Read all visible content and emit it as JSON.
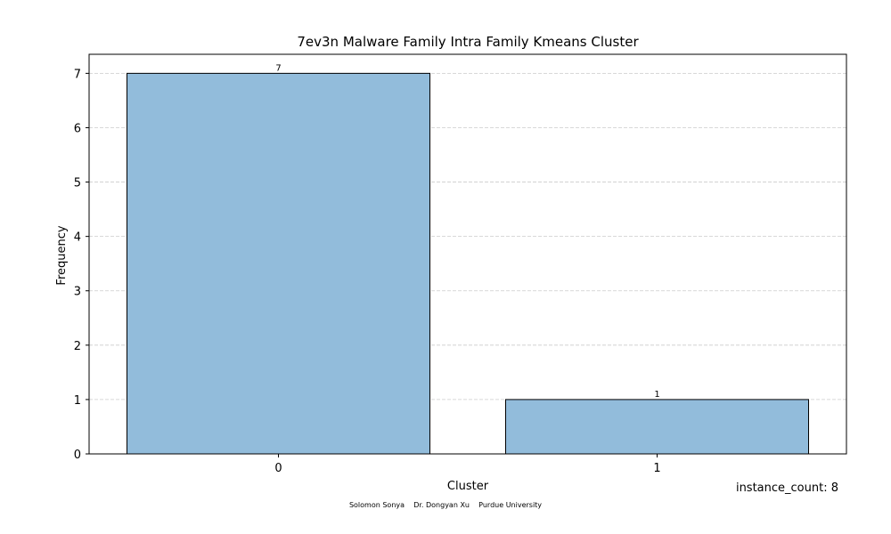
{
  "chart_data": {
    "type": "bar",
    "title": "7ev3n Malware Family Intra Family Kmeans Cluster",
    "xlabel": "Cluster",
    "ylabel": "Frequency",
    "categories": [
      "0",
      "1"
    ],
    "values": [
      7,
      1
    ],
    "data_labels": [
      "7",
      "1"
    ],
    "ylim": [
      0,
      7.35
    ],
    "yticks": [
      0,
      1,
      2,
      3,
      4,
      5,
      6,
      7
    ],
    "grid": true,
    "bar_color": "#92bcdb",
    "bar_edge_color": "#000000",
    "grid_color": "#cccccc"
  },
  "annotations": {
    "instance_count": "instance_count: 8",
    "footer": "Solomon Sonya    Dr. Dongyan Xu    Purdue University"
  }
}
